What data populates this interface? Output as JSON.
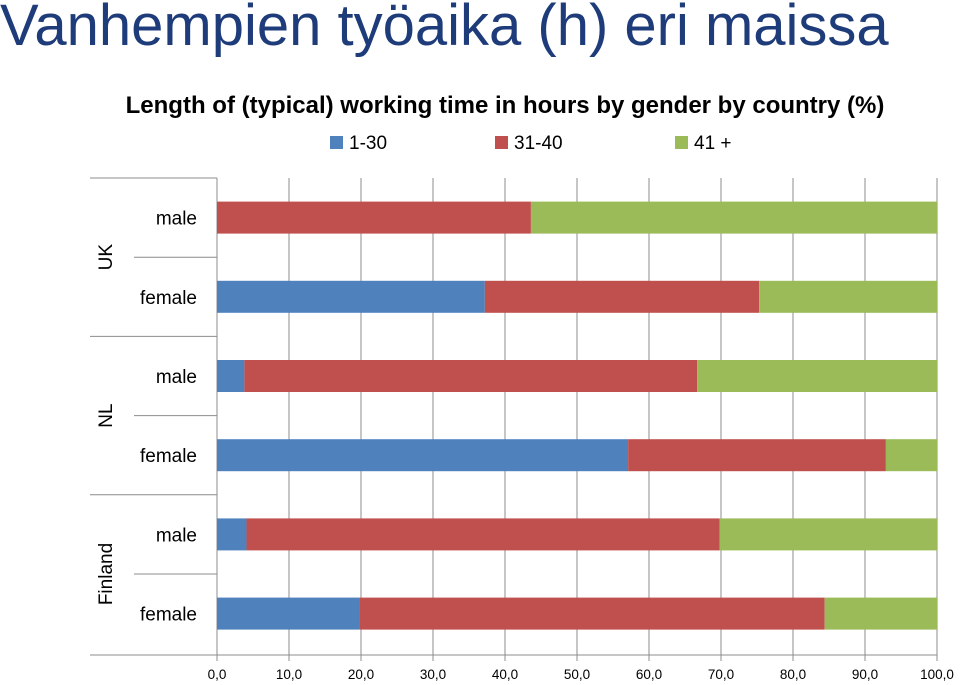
{
  "slide": {
    "title": "Vanhempien työaika (h) eri maissa"
  },
  "chart_data": {
    "type": "bar",
    "orientation": "horizontal",
    "stacked": true,
    "title": "Length of (typical) working time in hours by gender by country (%)",
    "xlabel": "",
    "ylabel": "",
    "xlim": [
      0,
      100
    ],
    "x_ticks": [
      "0,0",
      "10,0",
      "20,0",
      "30,0",
      "40,0",
      "50,0",
      "60,0",
      "70,0",
      "80,0",
      "90,0",
      "100,0"
    ],
    "grid": true,
    "legend_position": "top",
    "groups": [
      {
        "label": "UK",
        "categories": [
          "male",
          "female"
        ]
      },
      {
        "label": "NL",
        "categories": [
          "male",
          "female"
        ]
      },
      {
        "label": "Finland",
        "categories": [
          "male",
          "female"
        ]
      }
    ],
    "categories": [
      "UK male",
      "UK female",
      "NL male",
      "NL female",
      "Finland male",
      "Finland female"
    ],
    "series": [
      {
        "name": "1-30",
        "color": "#4f81bd",
        "values": [
          0.0,
          37.2,
          3.8,
          57.1,
          4.1,
          19.8
        ]
      },
      {
        "name": "31-40",
        "color": "#c0504d",
        "values": [
          43.6,
          38.1,
          62.9,
          35.8,
          65.7,
          64.6
        ]
      },
      {
        "name": "41 +",
        "color": "#9bbb59",
        "values": [
          56.4,
          24.7,
          33.3,
          7.1,
          30.2,
          15.6
        ]
      }
    ]
  }
}
